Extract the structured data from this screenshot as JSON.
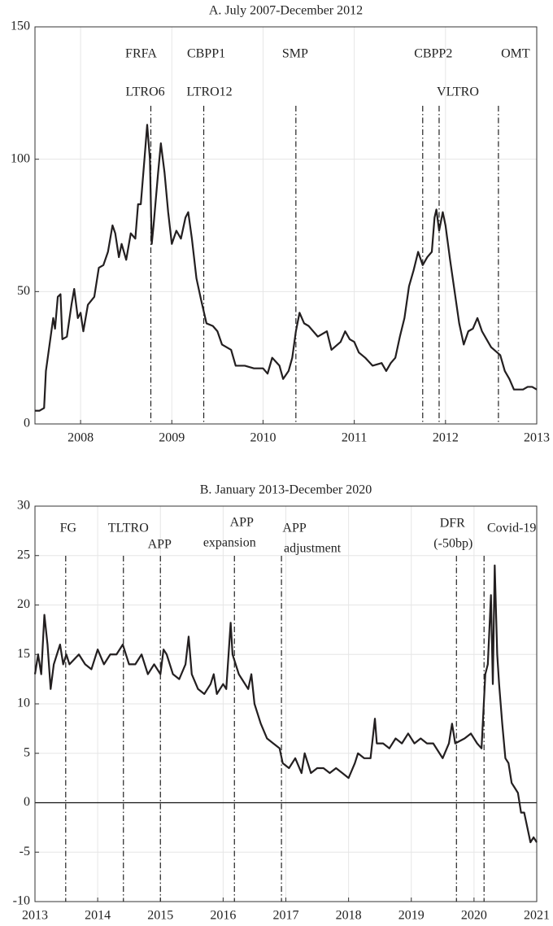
{
  "chart_data": [
    {
      "type": "line",
      "title": "A. July 2007-December 2012",
      "grid": true,
      "zero_line": false,
      "xlim": [
        2007.5,
        2013
      ],
      "xticks": [
        2008,
        2009,
        2010,
        2011,
        2012,
        2013
      ],
      "ylim": [
        0,
        150
      ],
      "yticks": [
        0,
        50,
        100,
        150
      ],
      "x": [
        2007.5,
        2007.55,
        2007.6,
        2007.62,
        2007.66,
        2007.7,
        2007.72,
        2007.75,
        2007.78,
        2007.8,
        2007.85,
        2007.9,
        2007.93,
        2007.97,
        2008.0,
        2008.03,
        2008.08,
        2008.15,
        2008.2,
        2008.25,
        2008.3,
        2008.35,
        2008.38,
        2008.42,
        2008.45,
        2008.5,
        2008.55,
        2008.6,
        2008.63,
        2008.66,
        2008.7,
        2008.73,
        2008.76,
        2008.78,
        2008.8,
        2008.85,
        2008.88,
        2008.92,
        2008.96,
        2009.0,
        2009.05,
        2009.1,
        2009.15,
        2009.18,
        2009.22,
        2009.27,
        2009.32,
        2009.38,
        2009.45,
        2009.5,
        2009.55,
        2009.65,
        2009.7,
        2009.8,
        2009.9,
        2010.0,
        2010.05,
        2010.1,
        2010.18,
        2010.22,
        2010.28,
        2010.32,
        2010.36,
        2010.4,
        2010.45,
        2010.5,
        2010.6,
        2010.7,
        2010.75,
        2010.85,
        2010.9,
        2010.95,
        2011.0,
        2011.05,
        2011.12,
        2011.2,
        2011.3,
        2011.35,
        2011.4,
        2011.45,
        2011.5,
        2011.55,
        2011.6,
        2011.65,
        2011.7,
        2011.75,
        2011.8,
        2011.85,
        2011.88,
        2011.9,
        2011.93,
        2011.97,
        2012.0,
        2012.05,
        2012.1,
        2012.15,
        2012.2,
        2012.25,
        2012.3,
        2012.35,
        2012.4,
        2012.45,
        2012.5,
        2012.6,
        2012.65,
        2012.7,
        2012.75,
        2012.85,
        2012.9,
        2012.95,
        2013.0
      ],
      "series": [
        {
          "color": "#231f20",
          "values": [
            5,
            5,
            6,
            20,
            30,
            40,
            36,
            48,
            49,
            32,
            33,
            45,
            51,
            40,
            42,
            35,
            45,
            48,
            59,
            60,
            65,
            75,
            72,
            63,
            68,
            62,
            72,
            70,
            83,
            83,
            100,
            113,
            100,
            68,
            75,
            95,
            106,
            95,
            80,
            68,
            73,
            70,
            78,
            80,
            70,
            55,
            47,
            38,
            37,
            35,
            30,
            28,
            22,
            22,
            21,
            21,
            19,
            25,
            22,
            17,
            20,
            25,
            35,
            42,
            38,
            37,
            33,
            35,
            28,
            31,
            35,
            32,
            31,
            27,
            25,
            22,
            23,
            20,
            23,
            25,
            33,
            40,
            52,
            58,
            65,
            60,
            63,
            65,
            78,
            81,
            73,
            80,
            75,
            62,
            50,
            38,
            30,
            35,
            36,
            40,
            35,
            32,
            29,
            26,
            20,
            17,
            13,
            13,
            14,
            14,
            13
          ]
        }
      ],
      "events": [
        {
          "x": 2008.77,
          "labels": [
            "FRFA",
            "LTRO6"
          ]
        },
        {
          "x": 2009.35,
          "labels": [
            "CBPP1",
            "LTRO12"
          ]
        },
        {
          "x": 2010.36,
          "labels": [
            "SMP"
          ]
        },
        {
          "x": 2011.75,
          "labels": [
            "CBPP2"
          ]
        },
        {
          "x": 2011.93,
          "labels": [
            "VLTRO"
          ]
        },
        {
          "x": 2012.58,
          "labels": [
            "OMT"
          ]
        }
      ]
    },
    {
      "type": "line",
      "title": "B. January 2013-December 2020",
      "grid": true,
      "zero_line": true,
      "xlim": [
        2013,
        2021
      ],
      "xticks": [
        2013,
        2014,
        2015,
        2016,
        2017,
        2018,
        2019,
        2020,
        2021
      ],
      "ylim": [
        -10,
        30
      ],
      "yticks": [
        -10,
        -5,
        0,
        5,
        10,
        15,
        20,
        25,
        30
      ],
      "x": [
        2013.0,
        2013.05,
        2013.1,
        2013.15,
        2013.2,
        2013.25,
        2013.3,
        2013.35,
        2013.4,
        2013.45,
        2013.5,
        2013.55,
        2013.7,
        2013.8,
        2013.9,
        2014.0,
        2014.1,
        2014.2,
        2014.3,
        2014.4,
        2014.5,
        2014.6,
        2014.7,
        2014.8,
        2014.9,
        2015.0,
        2015.05,
        2015.1,
        2015.2,
        2015.3,
        2015.4,
        2015.45,
        2015.5,
        2015.6,
        2015.7,
        2015.8,
        2015.85,
        2015.9,
        2016.0,
        2016.05,
        2016.12,
        2016.15,
        2016.25,
        2016.3,
        2016.4,
        2016.45,
        2016.5,
        2016.6,
        2016.7,
        2016.8,
        2016.9,
        2016.95,
        2017.05,
        2017.15,
        2017.25,
        2017.3,
        2017.4,
        2017.5,
        2017.6,
        2017.7,
        2017.8,
        2017.9,
        2018.0,
        2018.1,
        2018.15,
        2018.25,
        2018.35,
        2018.42,
        2018.45,
        2018.55,
        2018.65,
        2018.75,
        2018.85,
        2018.95,
        2019.05,
        2019.15,
        2019.25,
        2019.35,
        2019.45,
        2019.5,
        2019.6,
        2019.65,
        2019.7,
        2019.85,
        2019.95,
        2020.05,
        2020.12,
        2020.18,
        2020.22,
        2020.27,
        2020.3,
        2020.33,
        2020.37,
        2020.4,
        2020.45,
        2020.5,
        2020.55,
        2020.6,
        2020.65,
        2020.7,
        2020.75,
        2020.8,
        2020.85,
        2020.9,
        2020.95,
        2021.0
      ],
      "series": [
        {
          "color": "#231f20",
          "values": [
            13,
            15,
            13,
            19,
            16,
            11.5,
            14,
            15,
            16,
            14,
            15,
            14,
            15,
            14,
            13.5,
            15.5,
            14,
            15,
            15,
            16,
            14,
            14,
            15,
            13,
            14,
            13,
            15.5,
            15,
            13,
            12.5,
            14,
            16.8,
            13,
            11.5,
            11,
            12,
            13,
            11,
            12,
            11.5,
            18.2,
            15,
            13,
            12.5,
            11.5,
            13,
            10,
            8,
            6.5,
            6,
            5.5,
            4,
            3.5,
            4.5,
            3,
            5,
            3,
            3.5,
            3.5,
            3,
            3.5,
            3,
            2.5,
            4,
            5,
            4.5,
            4.5,
            8.5,
            6,
            6,
            5.5,
            6.5,
            6,
            7,
            6,
            6.5,
            6,
            6,
            5,
            4.5,
            6,
            8,
            6,
            6.5,
            7,
            6,
            5.5,
            13,
            14,
            21,
            12,
            24,
            15,
            12,
            8,
            4.5,
            4,
            2,
            1.5,
            1,
            -1,
            -1,
            -2.5,
            -4,
            -3.5,
            -4
          ]
        }
      ],
      "events": [
        {
          "x": 2013.49,
          "labels": [
            "FG"
          ]
        },
        {
          "x": 2014.41,
          "labels": [
            "TLTRO"
          ]
        },
        {
          "x": 2015.0,
          "labels": [
            "APP"
          ]
        },
        {
          "x": 2016.18,
          "labels": [
            "APP",
            "expansion"
          ]
        },
        {
          "x": 2016.93,
          "labels": [
            "APP",
            "adjustment"
          ]
        },
        {
          "x": 2019.72,
          "labels": [
            "DFR",
            "(-50bp)"
          ]
        },
        {
          "x": 2020.16,
          "labels": [
            "Covid-19"
          ]
        }
      ]
    }
  ]
}
